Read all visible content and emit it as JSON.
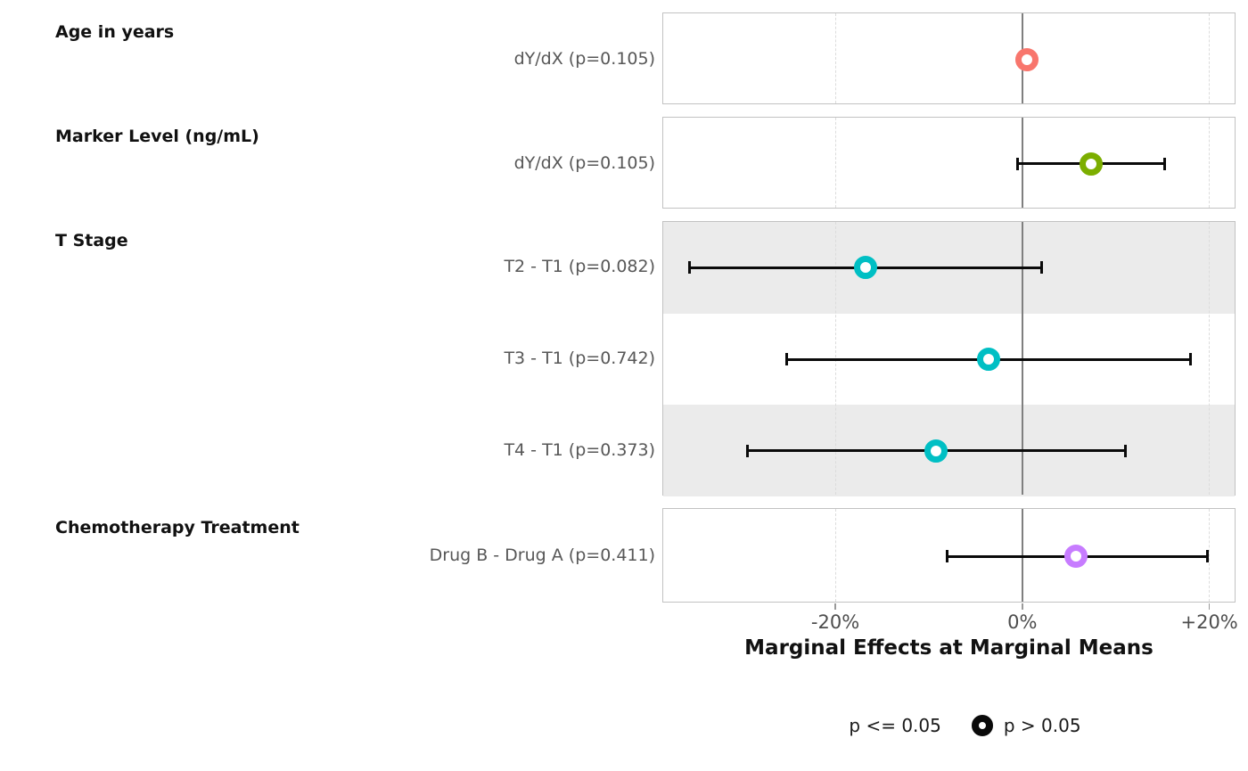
{
  "chart_data": {
    "type": "scatter",
    "subtype": "forest-plot-dot-whisker",
    "xlabel": "Marginal Effects at Marginal Means",
    "x_unit": "percent",
    "xlim": [
      -38.5,
      22.8
    ],
    "x_ticks": [
      {
        "value": -20,
        "label": "-20%"
      },
      {
        "value": 0,
        "label": "0%"
      },
      {
        "value": 20,
        "label": "+20%"
      }
    ],
    "reference_line_at": 0,
    "dashed_gridlines_at": [
      -20,
      20
    ],
    "grid": "vertical-dashed",
    "legend": {
      "position": "bottom-center",
      "items": [
        {
          "label": "p <= 0.05",
          "symbol": "filled-circle",
          "symbol_visible": false
        },
        {
          "label": "p > 0.05",
          "symbol": "open-circle",
          "symbol_visible": true
        }
      ]
    },
    "groups": [
      {
        "title": "Age in years",
        "rows": [
          {
            "label": "dY/dX (p=0.105)",
            "p_value": 0.105,
            "estimate_pct": 0.5,
            "ci_low_pct": null,
            "ci_high_pct": null,
            "color": "#F8766D",
            "shaded": false
          }
        ]
      },
      {
        "title": "Marker Level (ng/mL)",
        "rows": [
          {
            "label": "dY/dX (p=0.105)",
            "p_value": 0.105,
            "estimate_pct": 7.4,
            "ci_low_pct": -0.5,
            "ci_high_pct": 15.3,
            "color": "#7CAE00",
            "shaded": false
          }
        ]
      },
      {
        "title": "T Stage",
        "rows": [
          {
            "label": "T2 - T1 (p=0.082)",
            "p_value": 0.082,
            "estimate_pct": -16.8,
            "ci_low_pct": -35.7,
            "ci_high_pct": 2.1,
            "color": "#00BFC4",
            "shaded": true
          },
          {
            "label": "T3 - T1 (p=0.742)",
            "p_value": 0.742,
            "estimate_pct": -3.6,
            "ci_low_pct": -25.3,
            "ci_high_pct": 18.1,
            "color": "#00BFC4",
            "shaded": false
          },
          {
            "label": "T4 - T1 (p=0.373)",
            "p_value": 0.373,
            "estimate_pct": -9.2,
            "ci_low_pct": -29.5,
            "ci_high_pct": 11.1,
            "color": "#00BFC4",
            "shaded": true
          }
        ]
      },
      {
        "title": "Chemotherapy Treatment",
        "rows": [
          {
            "label": "Drug B - Drug A (p=0.411)",
            "p_value": 0.411,
            "estimate_pct": 5.8,
            "ci_low_pct": -8.0,
            "ci_high_pct": 19.9,
            "color": "#C77CFF",
            "shaded": false
          }
        ]
      }
    ],
    "colors": {
      "point_age": "#F8766D",
      "point_marker": "#7CAE00",
      "point_tstage": "#00BFC4",
      "point_chemo": "#C77CFF",
      "error_bar": "#0a0a0a",
      "zero_line": "#7f7f7f",
      "stripe": "#ebebeb",
      "panel_border": "#c2c2c2",
      "dashed_grid": "#dcdcdc"
    }
  }
}
